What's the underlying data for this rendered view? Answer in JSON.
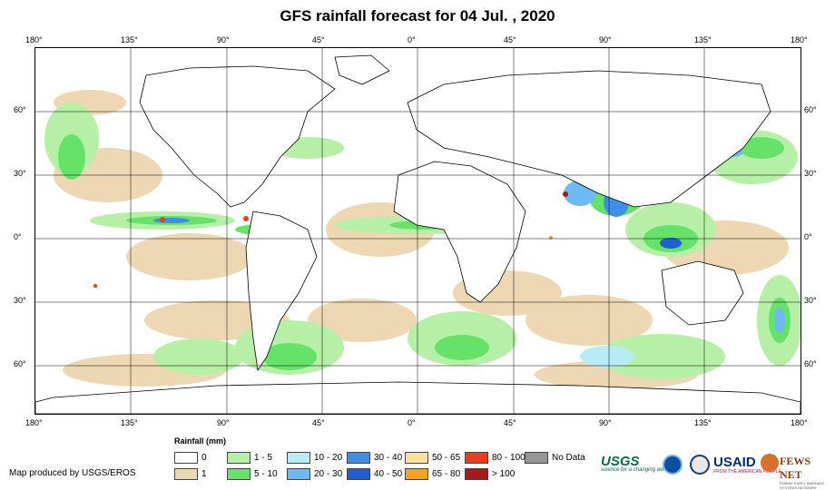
{
  "title": "GFS rainfall forecast for 04 Jul. , 2020",
  "top_ticks": [
    "180°",
    "135°",
    "90°",
    "45°",
    "0°",
    "45°",
    "90°",
    "135°",
    "180°"
  ],
  "bottom_ticks": [
    "180°",
    "135°",
    "90°",
    "45°",
    "0°",
    "45°",
    "90°",
    "135°",
    "180°"
  ],
  "left_ticks": [
    "60°",
    "30°",
    "0°",
    "30°",
    "60°"
  ],
  "right_ticks": [
    "60°",
    "30°",
    "0°",
    "30°",
    "60°"
  ],
  "legend": {
    "title": "Rainfall (mm)",
    "items": [
      {
        "label": "0",
        "color": "#ffffff"
      },
      {
        "label": "1",
        "color": "#eed8b4"
      },
      {
        "label": "1 - 5",
        "color": "#b6f0a6"
      },
      {
        "label": "5 - 10",
        "color": "#66e268"
      },
      {
        "label": "10 - 20",
        "color": "#b7ecf5"
      },
      {
        "label": "20 - 30",
        "color": "#6bbaf3"
      },
      {
        "label": "30 - 40",
        "color": "#3d8fe6"
      },
      {
        "label": "40 - 50",
        "color": "#1f5ed4"
      },
      {
        "label": "50 - 65",
        "color": "#f7e29a"
      },
      {
        "label": "65 - 80",
        "color": "#f5a321"
      },
      {
        "label": "80 - 100",
        "color": "#ef3b1c"
      },
      {
        "label": "> 100",
        "color": "#a81818"
      },
      {
        "label": "No Data",
        "color": "#969696"
      }
    ]
  },
  "credit": "Map produced by USGS/EROS",
  "logos": {
    "usgs": "USGS",
    "usgs_tagline": "science for a changing world",
    "usaid": "USAID",
    "usaid_tagline": "FROM THE AMERICAN PEOPLE",
    "fews": "FEWS NET",
    "fews_tagline": "FAMINE EARLY WARNING SYSTEMS NETWORK"
  }
}
